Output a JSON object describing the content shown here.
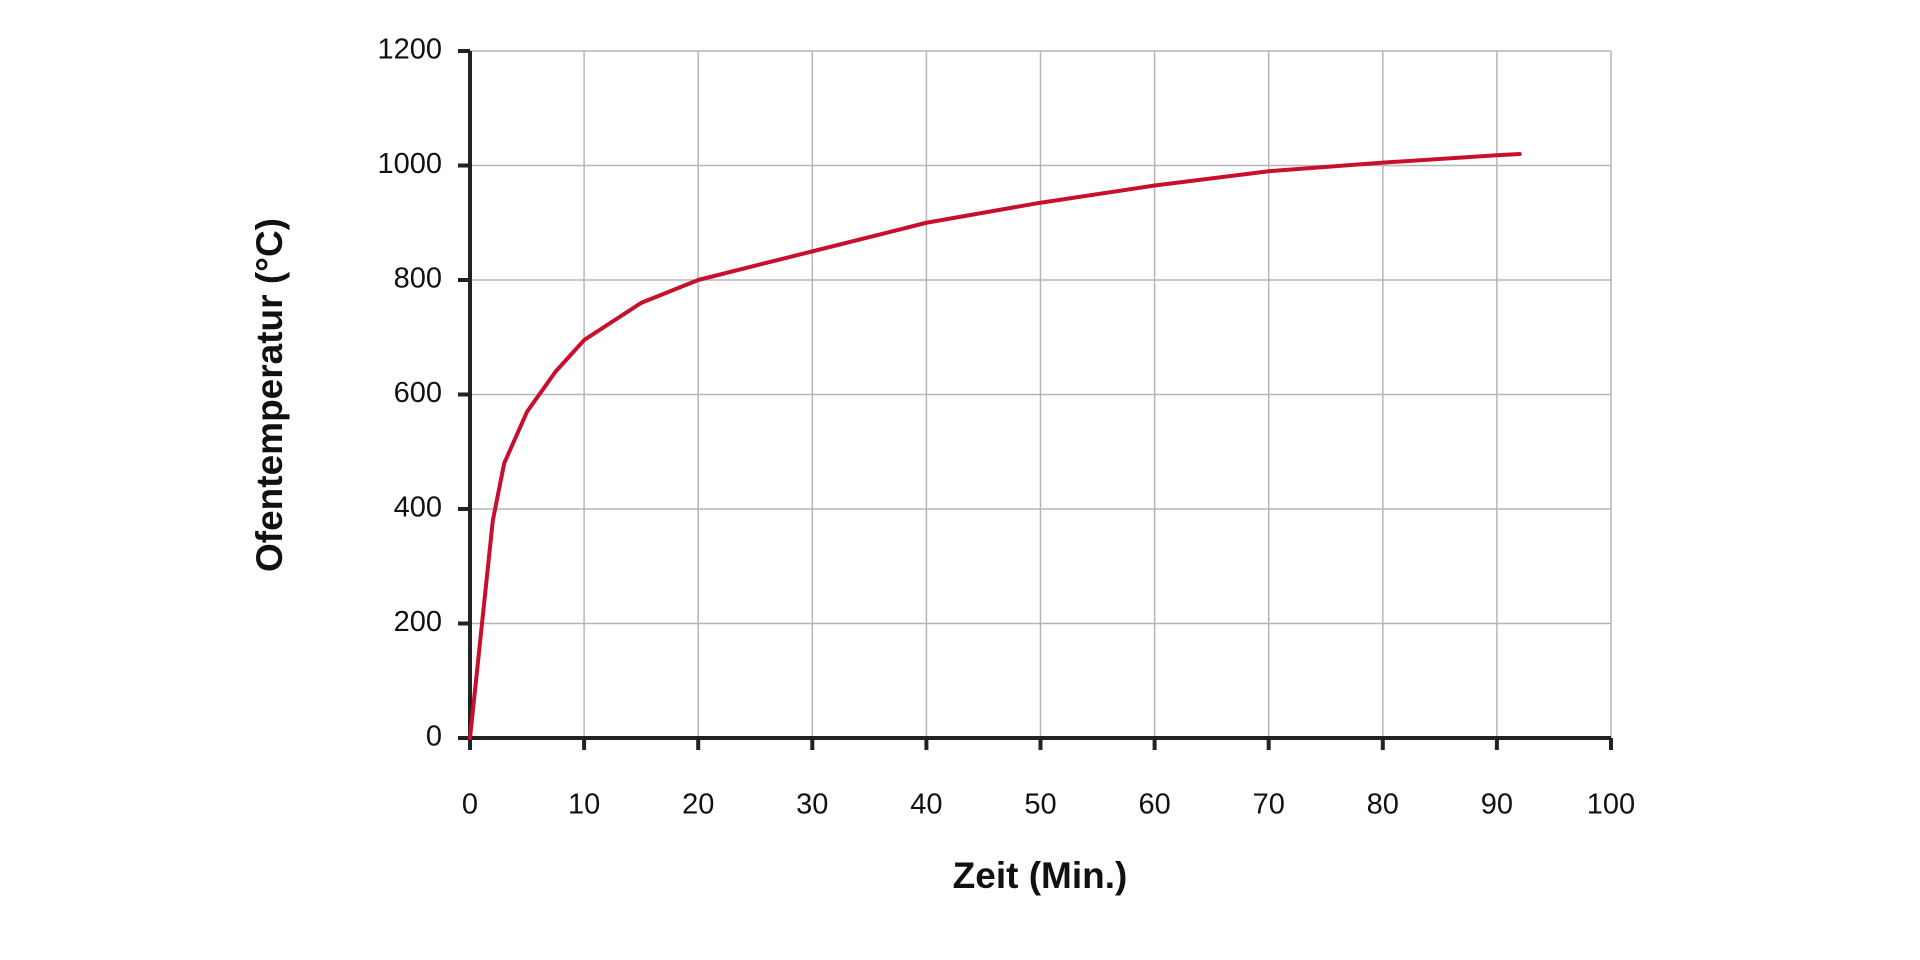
{
  "chart_data": {
    "type": "line",
    "x_label": "Zeit (Min.)",
    "y_label": "Ofentemperatur (°C)",
    "series": [
      {
        "color": "#c8102e",
        "x": [
          0,
          2,
          3,
          5,
          7.5,
          10,
          15,
          20,
          30,
          40,
          50,
          60,
          70,
          80,
          90,
          92
        ],
        "values": [
          0,
          380,
          480,
          570,
          640,
          695,
          760,
          800,
          850,
          900,
          935,
          965,
          990,
          1005,
          1018,
          1020
        ]
      }
    ],
    "xlim": [
      0,
      100
    ],
    "xticks": [
      0,
      10,
      20,
      30,
      40,
      50,
      60,
      70,
      80,
      90,
      100
    ],
    "ylim": [
      0,
      1200
    ],
    "yticks": [
      0,
      200,
      400,
      600,
      800,
      1000,
      1200
    ],
    "grid": true
  }
}
